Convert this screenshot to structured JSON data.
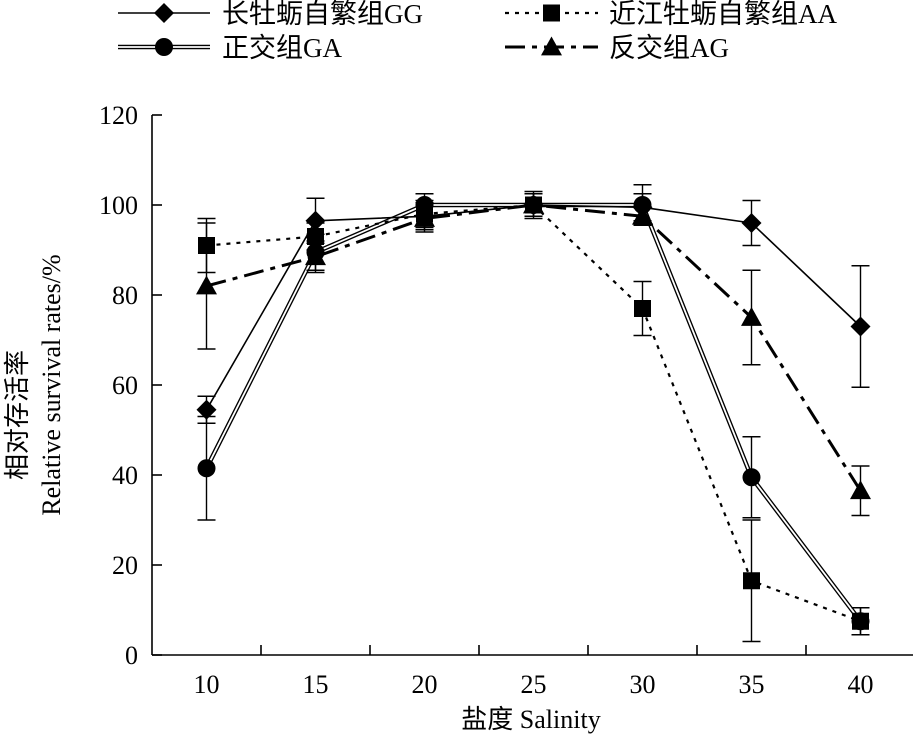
{
  "chart_data": {
    "type": "line",
    "xlabel": "盐度 Salinity",
    "ylabel_cn": "相对存活率",
    "ylabel_en": "Relative survival rates/%",
    "categories": [
      10,
      15,
      20,
      25,
      30,
      35,
      40
    ],
    "ylim": [
      0,
      120
    ],
    "yticks": [
      0,
      20,
      40,
      60,
      80,
      100,
      120
    ],
    "legend_position": "top",
    "series": [
      {
        "name": "长牡蛎自繁组GG",
        "marker": "diamond",
        "linestyle": "solid",
        "values": [
          54.5,
          96.5,
          97.5,
          100,
          99.5,
          96,
          73
        ],
        "errors": [
          3,
          5,
          3,
          2.5,
          3,
          5,
          13.5
        ]
      },
      {
        "name": "近江牡蛎自繁组AA",
        "marker": "square",
        "linestyle": "dotted",
        "values": [
          91,
          93,
          98,
          100,
          77,
          16.5,
          7.5
        ],
        "errors": [
          6,
          3,
          3,
          3,
          6,
          13.5,
          3
        ]
      },
      {
        "name": "正交组GA",
        "marker": "circle",
        "linestyle": "double",
        "values": [
          41.5,
          89.5,
          100,
          100,
          100,
          39.5,
          7.5
        ],
        "errors": [
          11.5,
          4,
          2.5,
          2.5,
          4.5,
          9,
          3
        ]
      },
      {
        "name": "反交组AG",
        "marker": "triangle",
        "linestyle": "dashdot",
        "values": [
          82,
          88.5,
          97,
          100,
          97.5,
          75,
          36.5
        ],
        "errors": [
          14,
          3.5,
          3,
          2.5,
          2,
          10.5,
          5.5
        ]
      }
    ]
  }
}
